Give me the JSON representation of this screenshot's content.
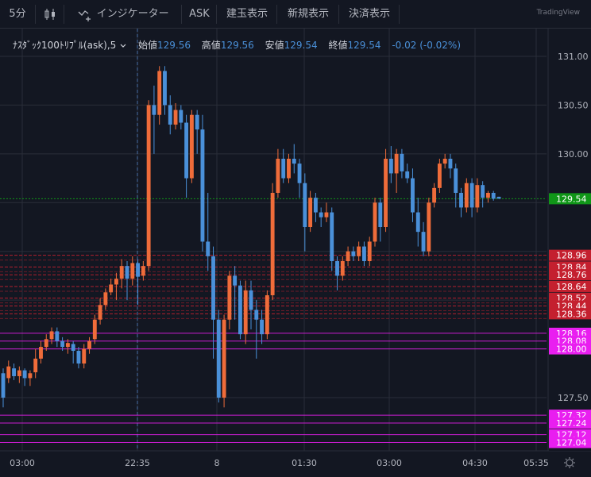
{
  "toolbar": {
    "interval": "5分",
    "indicators_label": "インジケーター",
    "buttons": [
      "ASK",
      "建玉表示",
      "新規表示",
      "決済表示"
    ],
    "brand": "TradingView"
  },
  "legend": {
    "symbol": "ﾅｽﾀﾞｯｸ100ﾄﾘﾌﾟﾙ(ask)",
    "interval": "5",
    "open_label": "始値",
    "open": "129.56",
    "high_label": "高値",
    "high": "129.56",
    "low_label": "安値",
    "low": "129.54",
    "close_label": "終値",
    "close": "129.54",
    "change": "-0.02 (-0.02%)"
  },
  "colors": {
    "up": "#ef6c3a",
    "down": "#4a90d9",
    "background": "#131722",
    "current_price": "#109618",
    "position_red": "#c4202f",
    "order_magenta": "#e91ef0"
  },
  "chart_data": {
    "type": "candlestick",
    "ylim": [
      127.15,
      131.1
    ],
    "y_ticks": [
      "131.00",
      "130.50",
      "130.00",
      "127.50"
    ],
    "x_ticks": [
      "03:00",
      "22:35",
      "8",
      "01:30",
      "03:00",
      "04:30",
      "05:35"
    ],
    "current_price": "129.54",
    "red_levels": [
      "128.96",
      "128.84",
      "128.76",
      "128.64",
      "128.52",
      "128.44",
      "128.36"
    ],
    "magenta_levels": [
      "128.16",
      "128.08",
      "128.00",
      "127.32",
      "127.24",
      "127.12",
      "127.04"
    ],
    "candles": [
      [
        127.75,
        127.5,
        127.8,
        127.4
      ],
      [
        127.7,
        127.82,
        127.88,
        127.65
      ],
      [
        127.8,
        127.72,
        127.85,
        127.68
      ],
      [
        127.72,
        127.78,
        127.82,
        127.65
      ],
      [
        127.78,
        127.7,
        127.8,
        127.62
      ],
      [
        127.7,
        127.75,
        127.78,
        127.62
      ],
      [
        127.76,
        127.9,
        128.0,
        127.7
      ],
      [
        127.9,
        128.02,
        128.08,
        127.85
      ],
      [
        128.02,
        128.1,
        128.15,
        127.98
      ],
      [
        128.1,
        128.18,
        128.22,
        128.05
      ],
      [
        128.18,
        128.08,
        128.22,
        128.02
      ],
      [
        128.08,
        128.02,
        128.12,
        127.98
      ],
      [
        128.02,
        128.06,
        128.1,
        127.95
      ],
      [
        128.05,
        127.98,
        128.08,
        127.85
      ],
      [
        127.98,
        127.85,
        128.02,
        127.8
      ],
      [
        127.85,
        128.0,
        128.05,
        127.8
      ],
      [
        128.0,
        128.08,
        128.12,
        127.95
      ],
      [
        128.1,
        128.3,
        128.35,
        128.05
      ],
      [
        128.3,
        128.45,
        128.52,
        128.25
      ],
      [
        128.45,
        128.58,
        128.62,
        128.4
      ],
      [
        128.58,
        128.66,
        128.72,
        128.55
      ],
      [
        128.66,
        128.72,
        128.78,
        128.5
      ],
      [
        128.72,
        128.85,
        128.92,
        128.62
      ],
      [
        128.85,
        128.72,
        128.9,
        128.5
      ],
      [
        128.72,
        128.88,
        128.95,
        128.65
      ],
      [
        128.88,
        128.74,
        128.92,
        128.45
      ],
      [
        128.75,
        128.85,
        128.9,
        128.7
      ],
      [
        128.85,
        130.5,
        130.55,
        128.8
      ],
      [
        130.5,
        130.4,
        130.7,
        130.0
      ],
      [
        130.4,
        130.85,
        130.9,
        130.3
      ],
      [
        130.85,
        130.5,
        130.9,
        130.4
      ],
      [
        130.5,
        130.3,
        130.6,
        130.2
      ],
      [
        130.3,
        130.45,
        130.52,
        130.25
      ],
      [
        130.45,
        130.32,
        130.5,
        130.25
      ],
      [
        130.32,
        129.75,
        130.4,
        129.55
      ],
      [
        129.75,
        130.4,
        130.45,
        129.7
      ],
      [
        130.4,
        130.25,
        130.45,
        130.0
      ],
      [
        130.25,
        129.1,
        130.4,
        129.0
      ],
      [
        129.1,
        128.95,
        129.6,
        128.8
      ],
      [
        128.95,
        128.3,
        129.05,
        127.9
      ],
      [
        128.3,
        127.5,
        128.4,
        127.45
      ],
      [
        127.5,
        128.3,
        128.35,
        127.4
      ],
      [
        128.3,
        128.75,
        128.8,
        128.2
      ],
      [
        128.75,
        128.65,
        128.85,
        128.3
      ],
      [
        128.65,
        128.15,
        128.7,
        128.1
      ],
      [
        128.15,
        128.6,
        128.7,
        128.05
      ],
      [
        128.6,
        128.4,
        128.7,
        128.2
      ],
      [
        128.4,
        128.3,
        128.5,
        127.9
      ],
      [
        128.3,
        128.15,
        128.4,
        128.05
      ],
      [
        128.15,
        128.55,
        128.6,
        128.1
      ],
      [
        128.55,
        129.6,
        129.7,
        128.5
      ],
      [
        129.6,
        129.95,
        130.05,
        129.55
      ],
      [
        129.95,
        129.75,
        130.05,
        129.7
      ],
      [
        129.75,
        129.95,
        130.0,
        129.7
      ],
      [
        129.95,
        129.9,
        130.1,
        129.8
      ],
      [
        129.9,
        129.7,
        129.95,
        129.55
      ],
      [
        129.7,
        129.25,
        129.8,
        129.0
      ],
      [
        129.25,
        129.55,
        129.62,
        129.2
      ],
      [
        129.55,
        129.4,
        129.6,
        129.3
      ],
      [
        129.4,
        129.35,
        129.45,
        129.25
      ],
      [
        129.35,
        129.4,
        129.5,
        129.3
      ],
      [
        129.4,
        128.9,
        129.45,
        128.8
      ],
      [
        128.9,
        128.75,
        128.95,
        128.6
      ],
      [
        128.75,
        128.9,
        128.95,
        128.7
      ],
      [
        128.9,
        129.0,
        129.05,
        128.85
      ],
      [
        129.0,
        128.95,
        129.05,
        128.9
      ],
      [
        128.95,
        129.05,
        129.1,
        128.9
      ],
      [
        129.05,
        128.9,
        129.1,
        128.85
      ],
      [
        128.9,
        129.1,
        129.15,
        128.85
      ],
      [
        129.1,
        129.5,
        129.55,
        129.05
      ],
      [
        129.5,
        129.25,
        129.55,
        129.1
      ],
      [
        129.25,
        129.95,
        130.05,
        129.2
      ],
      [
        129.95,
        129.8,
        130.08,
        129.7
      ],
      [
        129.8,
        130.0,
        130.05,
        129.6
      ],
      [
        130.0,
        129.82,
        130.05,
        129.75
      ],
      [
        129.82,
        129.75,
        129.9,
        129.7
      ],
      [
        129.75,
        129.4,
        129.85,
        129.3
      ],
      [
        129.4,
        129.2,
        129.55,
        129.05
      ],
      [
        129.2,
        129.0,
        129.3,
        128.95
      ],
      [
        129.0,
        129.5,
        129.55,
        128.95
      ],
      [
        129.5,
        129.65,
        129.7,
        129.45
      ],
      [
        129.65,
        129.9,
        129.95,
        129.6
      ],
      [
        129.9,
        129.95,
        130.0,
        129.85
      ],
      [
        129.95,
        129.85,
        130.0,
        129.75
      ],
      [
        129.85,
        129.6,
        129.9,
        129.45
      ],
      [
        129.6,
        129.45,
        129.65,
        129.35
      ],
      [
        129.45,
        129.7,
        129.75,
        129.4
      ],
      [
        129.7,
        129.45,
        129.75,
        129.35
      ],
      [
        129.45,
        129.68,
        129.75,
        129.4
      ],
      [
        129.68,
        129.55,
        129.72,
        129.45
      ],
      [
        129.55,
        129.6,
        129.62,
        129.5
      ],
      [
        129.6,
        129.54,
        129.62,
        129.52
      ],
      [
        129.56,
        129.54,
        129.56,
        129.54
      ]
    ]
  }
}
